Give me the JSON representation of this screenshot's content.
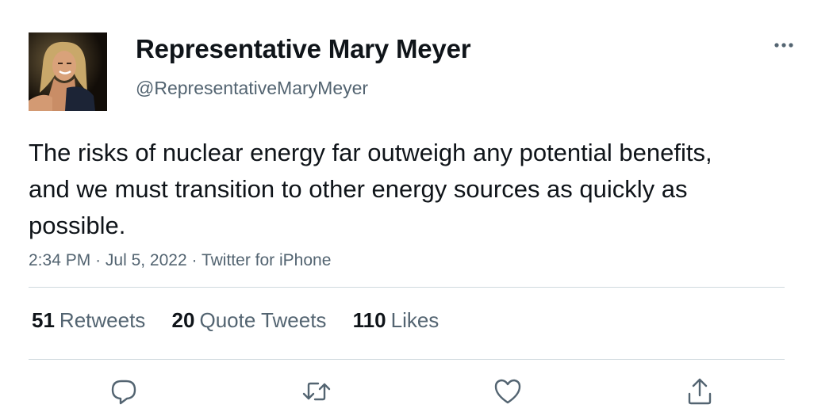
{
  "author": {
    "display_name": "Representative Mary Meyer",
    "handle": "@RepresentativeMaryMeyer",
    "avatar_icon": "profile-photo"
  },
  "tweet": {
    "text": "The risks of nuclear energy far outweigh any potential benefits, and we must transition to other energy sources as quickly as possible.",
    "time": "2:34 PM",
    "separator": "·",
    "date": "Jul 5, 2022",
    "source": "Twitter for iPhone"
  },
  "stats": {
    "retweets": {
      "count": "51",
      "label": "Retweets"
    },
    "quote_tweets": {
      "count": "20",
      "label": "Quote Tweets"
    },
    "likes": {
      "count": "110",
      "label": "Likes"
    }
  },
  "actions": {
    "reply_icon": "reply-icon",
    "retweet_icon": "retweet-icon",
    "like_icon": "heart-icon",
    "share_icon": "share-icon",
    "more_icon": "more-icon"
  },
  "colors": {
    "text": "#0f1419",
    "secondary": "#536471",
    "divider": "#cfd9de"
  }
}
